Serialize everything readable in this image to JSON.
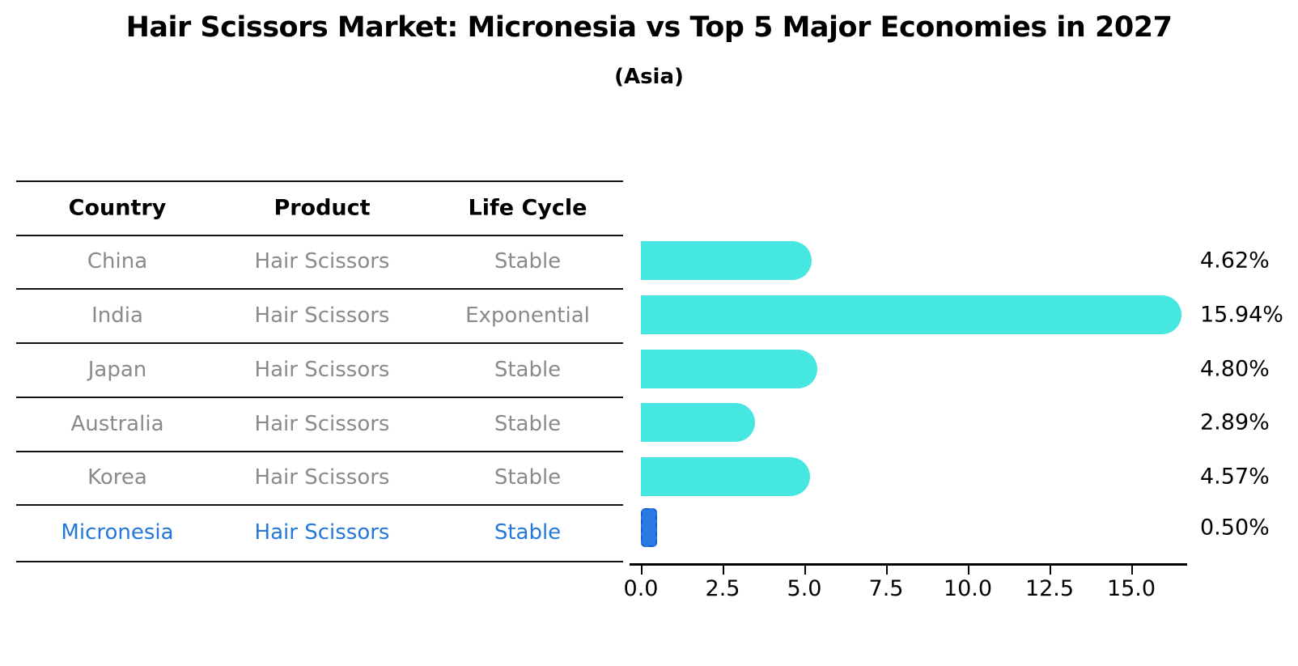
{
  "title": "Hair Scissors Market: Micronesia vs Top 5 Major Economies in 2027",
  "subtitle": "(Asia)",
  "table": {
    "columns": [
      "Country",
      "Product",
      "Life Cycle"
    ],
    "rows": [
      {
        "country": "China",
        "product": "Hair Scissors",
        "life_cycle": "Stable",
        "highlight": false
      },
      {
        "country": "India",
        "product": "Hair Scissors",
        "life_cycle": "Exponential",
        "highlight": false
      },
      {
        "country": "Japan",
        "product": "Hair Scissors",
        "life_cycle": "Stable",
        "highlight": false
      },
      {
        "country": "Australia",
        "product": "Hair Scissors",
        "life_cycle": "Stable",
        "highlight": false
      },
      {
        "country": "Korea",
        "product": "Hair Scissors",
        "life_cycle": "Stable",
        "highlight": false
      },
      {
        "country": "Micronesia",
        "product": "Hair Scissors",
        "life_cycle": "Stable",
        "highlight": true
      }
    ]
  },
  "chart_data": {
    "type": "bar",
    "orientation": "horizontal",
    "title": "Hair Scissors Market: Micronesia vs Top 5 Major Economies in 2027",
    "subtitle": "(Asia)",
    "categories": [
      "China",
      "India",
      "Japan",
      "Australia",
      "Korea",
      "Micronesia"
    ],
    "values": [
      4.62,
      15.94,
      4.8,
      2.89,
      4.57,
      0.5
    ],
    "value_labels": [
      "4.62%",
      "15.94%",
      "4.80%",
      "2.89%",
      "4.57%",
      "0.50%"
    ],
    "highlight_index": 5,
    "x_tick_labels": [
      "0.0",
      "2.5",
      "5.0",
      "7.5",
      "10.0",
      "12.5",
      "15.0"
    ],
    "x_tick_values": [
      0,
      2.5,
      5,
      7.5,
      10,
      12.5,
      15
    ],
    "xlim": [
      0,
      16.7
    ],
    "grid": false,
    "legend": "none",
    "bar_color": "#46e6e1",
    "highlight_bar_color": "#2b79e3",
    "highlight_text_color": "#2478d8",
    "row_text_color": "#8a8a8a",
    "axis_color": "#000000"
  }
}
